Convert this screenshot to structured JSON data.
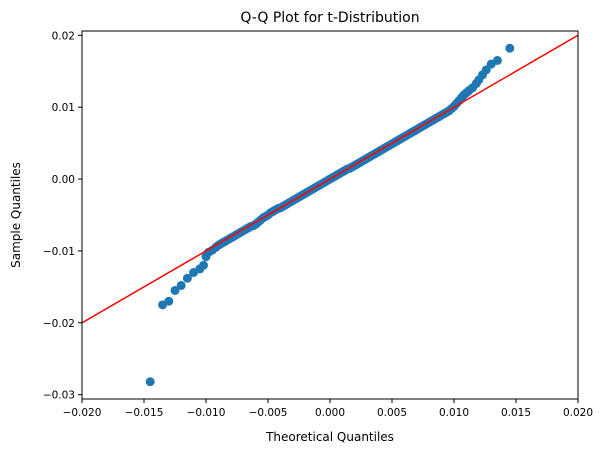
{
  "chart_data": {
    "type": "scatter",
    "title": "Q-Q Plot for t-Distribution",
    "xlabel": "Theoretical Quantiles",
    "ylabel": "Sample Quantiles",
    "xlim": [
      -0.02,
      0.02
    ],
    "ylim": [
      -0.0306,
      0.0206
    ],
    "xticks": [
      -0.02,
      -0.015,
      -0.01,
      -0.005,
      0.0,
      0.005,
      0.01,
      0.015,
      0.02
    ],
    "xtick_labels": [
      "−0.020",
      "−0.015",
      "−0.010",
      "−0.005",
      "0.000",
      "0.005",
      "0.010",
      "0.015",
      "0.020"
    ],
    "yticks": [
      -0.03,
      -0.02,
      -0.01,
      0.0,
      0.01,
      0.02
    ],
    "ytick_labels": [
      "−0.03",
      "−0.02",
      "−0.01",
      "0.00",
      "0.01",
      "0.02"
    ],
    "grid": false,
    "colors": {
      "points": "#1f77b4",
      "reference_line": "#ff0000",
      "axes": "#000000"
    },
    "reference_line": {
      "x": [
        -0.02,
        0.02
      ],
      "y": [
        -0.02,
        0.02
      ]
    },
    "series": [
      {
        "x": [
          -0.0145,
          -0.0135,
          -0.013,
          -0.0125,
          -0.012,
          -0.0115,
          -0.011,
          -0.0105,
          -0.0102,
          -0.01,
          -0.0098,
          -0.0095,
          -0.0092,
          -0.009,
          -0.0088,
          -0.0086,
          -0.0084,
          -0.0082,
          -0.008,
          -0.0078,
          -0.0076,
          -0.0074,
          -0.0072,
          -0.007,
          -0.0068,
          -0.0066,
          -0.0064,
          -0.0062,
          -0.006,
          -0.0058,
          -0.0056,
          -0.0054,
          -0.0052,
          -0.005,
          -0.0048,
          -0.0046,
          -0.0044,
          -0.0042,
          -0.004,
          -0.0038,
          -0.0036,
          -0.0034,
          -0.0032,
          -0.003,
          -0.0028,
          -0.0026,
          -0.0024,
          -0.0022,
          -0.002,
          -0.0018,
          -0.0016,
          -0.0014,
          -0.0012,
          -0.001,
          -0.0008,
          -0.0006,
          -0.0004,
          -0.0002,
          0.0,
          0.0002,
          0.0004,
          0.0006,
          0.0008,
          0.001,
          0.0012,
          0.0014,
          0.0016,
          0.0018,
          0.002,
          0.0022,
          0.0024,
          0.0026,
          0.0028,
          0.003,
          0.0032,
          0.0034,
          0.0036,
          0.0038,
          0.004,
          0.0042,
          0.0044,
          0.0046,
          0.0048,
          0.005,
          0.0052,
          0.0054,
          0.0056,
          0.0058,
          0.006,
          0.0062,
          0.0064,
          0.0066,
          0.0068,
          0.007,
          0.0072,
          0.0074,
          0.0076,
          0.0078,
          0.008,
          0.0082,
          0.0084,
          0.0086,
          0.0088,
          0.009,
          0.0092,
          0.0094,
          0.0096,
          0.0098,
          0.01,
          0.0102,
          0.0104,
          0.0106,
          0.0108,
          0.011,
          0.0112,
          0.0115,
          0.0118,
          0.012,
          0.0123,
          0.0126,
          0.013,
          0.0135,
          0.0145
        ],
        "y": [
          -0.0282,
          -0.0175,
          -0.017,
          -0.0155,
          -0.0148,
          -0.0138,
          -0.013,
          -0.0125,
          -0.012,
          -0.0108,
          -0.0102,
          -0.0099,
          -0.0095,
          -0.0092,
          -0.009,
          -0.0088,
          -0.0086,
          -0.0084,
          -0.0082,
          -0.008,
          -0.0078,
          -0.0076,
          -0.0074,
          -0.0072,
          -0.007,
          -0.0068,
          -0.0066,
          -0.0065,
          -0.0063,
          -0.006,
          -0.0057,
          -0.0054,
          -0.0052,
          -0.005,
          -0.0047,
          -0.0045,
          -0.0043,
          -0.0041,
          -0.004,
          -0.0038,
          -0.0036,
          -0.0034,
          -0.0032,
          -0.003,
          -0.0028,
          -0.0026,
          -0.0024,
          -0.0022,
          -0.002,
          -0.0018,
          -0.0016,
          -0.0014,
          -0.0012,
          -0.001,
          -0.0008,
          -0.0006,
          -0.0004,
          -0.0002,
          0.0,
          0.0002,
          0.0004,
          0.0006,
          0.0008,
          0.001,
          0.0012,
          0.0014,
          0.0015,
          0.0017,
          0.0019,
          0.0021,
          0.0023,
          0.0025,
          0.0027,
          0.0029,
          0.0031,
          0.0033,
          0.0035,
          0.0037,
          0.0039,
          0.0041,
          0.0043,
          0.0045,
          0.0047,
          0.0049,
          0.0051,
          0.0053,
          0.0055,
          0.0057,
          0.0059,
          0.0061,
          0.0063,
          0.0065,
          0.0067,
          0.0069,
          0.0071,
          0.0073,
          0.0075,
          0.0077,
          0.0079,
          0.0081,
          0.0083,
          0.0085,
          0.0087,
          0.0089,
          0.0091,
          0.0093,
          0.0095,
          0.0098,
          0.0101,
          0.0105,
          0.0109,
          0.0113,
          0.0117,
          0.012,
          0.0123,
          0.0127,
          0.0133,
          0.0138,
          0.0145,
          0.0152,
          0.016,
          0.0165,
          0.0182
        ]
      }
    ]
  }
}
